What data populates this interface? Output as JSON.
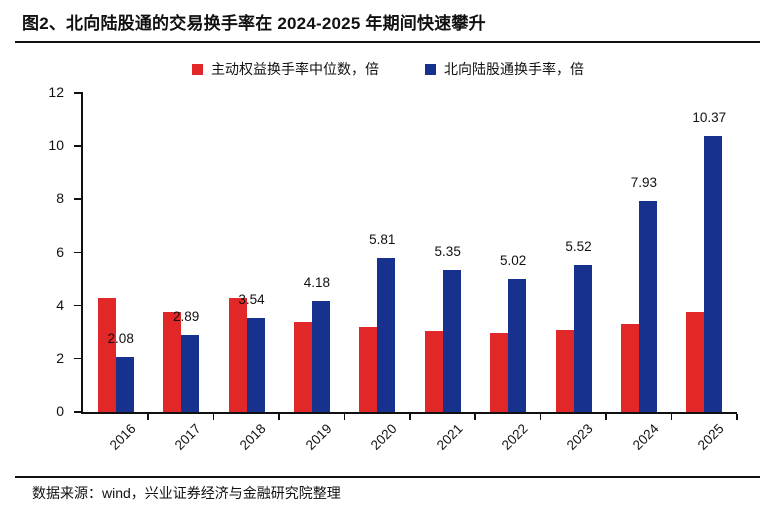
{
  "header": {
    "title": "图2、北向陆股通的交易换手率在 2024-2025 年期间快速攀升"
  },
  "footer": {
    "source": "数据来源：wind，兴业证券经济与金融研究院整理"
  },
  "colors": {
    "red_series": "#e12727",
    "blue_series": "#17318f",
    "axis": "#111111",
    "background": "#ffffff"
  },
  "chart_data": {
    "type": "bar",
    "title": "",
    "xlabel": "",
    "ylabel": "",
    "categories": [
      "2016",
      "2017",
      "2018",
      "2019",
      "2020",
      "2021",
      "2022",
      "2023",
      "2024",
      "2025"
    ],
    "series": [
      {
        "name": "主动权益换手率中位数，倍",
        "color": "#e12727",
        "values": [
          4.3,
          3.77,
          4.27,
          3.4,
          3.2,
          3.06,
          2.96,
          3.08,
          3.3,
          3.77
        ],
        "data_labels": false
      },
      {
        "name": "北向陆股通换手率，倍",
        "color": "#17318f",
        "values": [
          2.08,
          2.89,
          3.54,
          4.18,
          5.81,
          5.35,
          5.02,
          5.52,
          7.93,
          10.37
        ],
        "labels": [
          "2.08",
          "2.89",
          "3.54",
          "4.18",
          "5.81",
          "5.35",
          "5.02",
          "5.52",
          "7.93",
          "10.37"
        ],
        "data_labels": true
      }
    ],
    "ylim": [
      0,
      12
    ],
    "ytick_step": 2,
    "yticks": [
      0,
      2,
      4,
      6,
      8,
      10,
      12
    ],
    "grid": false,
    "legend_position": "top",
    "bar_label_note": "only blue series has value labels above bars"
  }
}
